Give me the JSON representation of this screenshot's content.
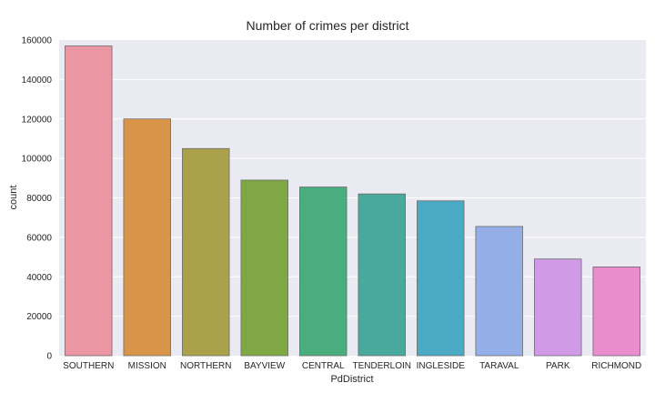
{
  "chart_data": {
    "type": "bar",
    "title": "Number of crimes per district",
    "xlabel": "PdDistrict",
    "ylabel": "count",
    "ylim": [
      0,
      160000
    ],
    "yticks": [
      0,
      20000,
      40000,
      60000,
      80000,
      100000,
      120000,
      140000,
      160000
    ],
    "grid": true,
    "categories": [
      "SOUTHERN",
      "MISSION",
      "NORTHERN",
      "BAYVIEW",
      "CENTRAL",
      "TENDERLOIN",
      "INGLESIDE",
      "TARAVAL",
      "PARK",
      "RICHMOND"
    ],
    "values": [
      157000,
      120000,
      105000,
      89000,
      85500,
      82000,
      78500,
      65500,
      49000,
      45000
    ],
    "colors": [
      "#ea96a3",
      "#d8954a",
      "#aba14a",
      "#7fa845",
      "#49ad7e",
      "#49a99d",
      "#4aaac3",
      "#94afe7",
      "#d19ae7",
      "#e98dcf"
    ],
    "background": "#eaeaf2"
  }
}
